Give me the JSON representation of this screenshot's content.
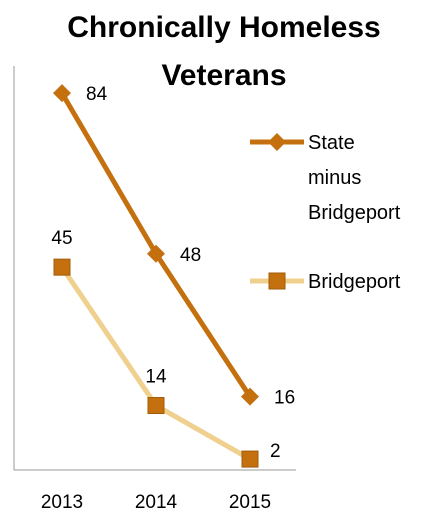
{
  "chart_data": {
    "type": "line",
    "title_lines": [
      "Chronically Homeless",
      "Veterans"
    ],
    "categories": [
      "2013",
      "2014",
      "2015"
    ],
    "series": [
      {
        "name_lines": [
          "State",
          "minus",
          "Bridgeport"
        ],
        "values": [
          84,
          48,
          16
        ],
        "color": "#C5700F",
        "marker": "diamond"
      },
      {
        "name_lines": [
          "Bridgeport"
        ],
        "values": [
          45,
          14,
          2
        ],
        "color": "#F0D08E",
        "marker_color": "#C5700F",
        "marker": "square"
      }
    ],
    "ylim": [
      0,
      95
    ],
    "grid": false,
    "legend": "right"
  }
}
